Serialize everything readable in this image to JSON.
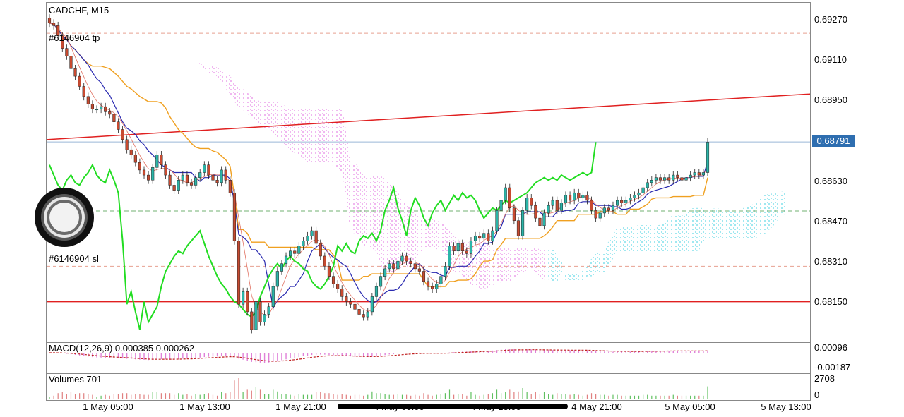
{
  "header": {
    "symbol_label": "CADCHF, M15"
  },
  "trade_lines": {
    "tp_label": "#6146904 tp",
    "sl_label": "#6146904 sl"
  },
  "price_axis": {
    "ticks": [
      "0.69270",
      "0.69110",
      "0.68950",
      "0.68790",
      "0.68630",
      "0.68470",
      "0.68310",
      "0.68150"
    ],
    "current_price": "0.68791"
  },
  "macd": {
    "label": "MACD(12,26,9) 0.000385 0.000262",
    "ticks": [
      "0.00096",
      "-0.00187"
    ]
  },
  "volumes": {
    "label": "Volumes 701",
    "ticks": [
      "2708",
      "0"
    ]
  },
  "time_axis": {
    "labels": [
      "1 May 05:00",
      "1 May 13:00",
      "1 May 21:00",
      "4 May 05:00",
      "4 May 13:00",
      "4 May 21:00",
      "5 May 05:00",
      "5 May 13:00"
    ]
  },
  "colors": {
    "candle_up": "#2bb5a8",
    "candle_down": "#c84a30",
    "kijun": "#f0a020",
    "tenkan": "#2a2ab0",
    "fast_ma": "#e07060",
    "chikou": "#22dd22",
    "trendline": "#e02020",
    "current_price_box": "#2e6eb0",
    "cloud_pink": "#e070e0",
    "cloud_cyan": "#40d0e0"
  },
  "chart_data": {
    "type": "candlestick",
    "title": "CADCHF, M15",
    "ylim": [
      0.68,
      0.6934
    ],
    "yticks": [
      0.6927,
      0.6911,
      0.6895,
      0.6879,
      0.6863,
      0.6847,
      0.6831,
      0.6815
    ],
    "current_price": 0.68791,
    "take_profit_level": 0.6922,
    "stop_loss_level": 0.683,
    "horizontal_line": 0.6816,
    "trendline": {
      "from": 0.688,
      "to": 0.6898
    },
    "close_path": [
      0.6926,
      0.6925,
      0.6921,
      0.6916,
      0.6913,
      0.6908,
      0.6905,
      0.6901,
      0.6897,
      0.6894,
      0.6892,
      0.6892,
      0.6893,
      0.6891,
      0.689,
      0.6887,
      0.6884,
      0.688,
      0.6876,
      0.6874,
      0.6871,
      0.6868,
      0.6866,
      0.6864,
      0.6869,
      0.6874,
      0.687,
      0.6866,
      0.6862,
      0.686,
      0.6864,
      0.6866,
      0.6863,
      0.6862,
      0.6865,
      0.6867,
      0.687,
      0.6866,
      0.6864,
      0.6863,
      0.6868,
      0.6864,
      0.6859,
      0.684,
      0.6815,
      0.682,
      0.6812,
      0.6805,
      0.6816,
      0.6808,
      0.6811,
      0.6814,
      0.6822,
      0.6828,
      0.6831,
      0.6834,
      0.6836,
      0.6835,
      0.6838,
      0.684,
      0.6842,
      0.6844,
      0.6839,
      0.6834,
      0.683,
      0.6826,
      0.6823,
      0.6821,
      0.6818,
      0.6816,
      0.6815,
      0.6813,
      0.6811,
      0.681,
      0.6812,
      0.6818,
      0.6822,
      0.6826,
      0.6829,
      0.6831,
      0.6829,
      0.6832,
      0.6834,
      0.6832,
      0.6831,
      0.6829,
      0.6828,
      0.6824,
      0.6822,
      0.6821,
      0.6823,
      0.6826,
      0.683,
      0.6838,
      0.6836,
      0.6839,
      0.6836,
      0.6835,
      0.684,
      0.6842,
      0.6841,
      0.6843,
      0.684,
      0.6844,
      0.6852,
      0.6856,
      0.6861,
      0.6853,
      0.6848,
      0.6842,
      0.6852,
      0.6857,
      0.6854,
      0.6849,
      0.6846,
      0.6851,
      0.6854,
      0.6856,
      0.6852,
      0.6855,
      0.6858,
      0.6856,
      0.6859,
      0.6857,
      0.6858,
      0.6856,
      0.6852,
      0.6849,
      0.6851,
      0.6853,
      0.6852,
      0.6854,
      0.6856,
      0.6855,
      0.6856,
      0.6857,
      0.6858,
      0.6859,
      0.6861,
      0.6863,
      0.6864,
      0.6865,
      0.6864,
      0.6865,
      0.6864,
      0.6866,
      0.6865,
      0.6864,
      0.6865,
      0.6866,
      0.6867,
      0.6866,
      0.6867,
      0.6879
    ]
  }
}
